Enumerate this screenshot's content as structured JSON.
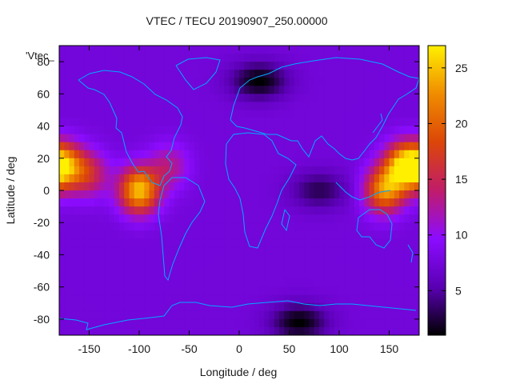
{
  "chart_data": {
    "type": "heatmap",
    "title": "VTEC / TECU 20190907_250.00000",
    "xlabel": "Longitude / deg",
    "ylabel": "Latitude / deg",
    "legend_label": "'Vtec_",
    "xlim": [
      -180,
      180
    ],
    "ylim": [
      -90,
      90
    ],
    "x_ticks": [
      -150,
      -100,
      -50,
      0,
      50,
      100,
      150
    ],
    "y_ticks": [
      80,
      60,
      40,
      20,
      0,
      -20,
      -40,
      -60,
      -80
    ],
    "colorbar": {
      "range": [
        1,
        27
      ],
      "ticks": [
        25,
        20,
        15,
        10,
        5
      ],
      "palette": [
        "#000000",
        "#5a00b4",
        "#8c0cff",
        "#c01c6a",
        "#dc4608",
        "#f08c00",
        "#fff000"
      ]
    },
    "grid_resolution_deg": [
      5,
      5
    ],
    "background_tecu": 7.5,
    "features": [
      {
        "region": "Pacific, near 0N 100W",
        "lon": -100,
        "lat": 0,
        "peak_tecu": 25
      },
      {
        "region": "western Pacific, near 15N 165E",
        "lon": 165,
        "lat": 15,
        "peak_tecu": 25
      },
      {
        "region": "western Pacific, near 0N 145E",
        "lon": 145,
        "lat": 0,
        "peak_tecu": 22
      },
      {
        "region": "central Pacific, near 15N 175W",
        "lon": -175,
        "lat": 15,
        "peak_tecu": 22
      },
      {
        "region": "eastern Pacific, near 10N 150W",
        "lon": -150,
        "lat": 10,
        "peak_tecu": 15
      },
      {
        "region": "Central America",
        "lon": -70,
        "lat": 15,
        "peak_tecu": 13
      },
      {
        "region": "Scandinavia",
        "lon": 20,
        "lat": 68,
        "min_tecu": 1
      },
      {
        "region": "Antarctica",
        "lon": 60,
        "lat": -82,
        "min_tecu": 1
      },
      {
        "region": "Indian Ocean",
        "lon": 80,
        "lat": 0,
        "min_tecu": 3
      }
    ]
  }
}
